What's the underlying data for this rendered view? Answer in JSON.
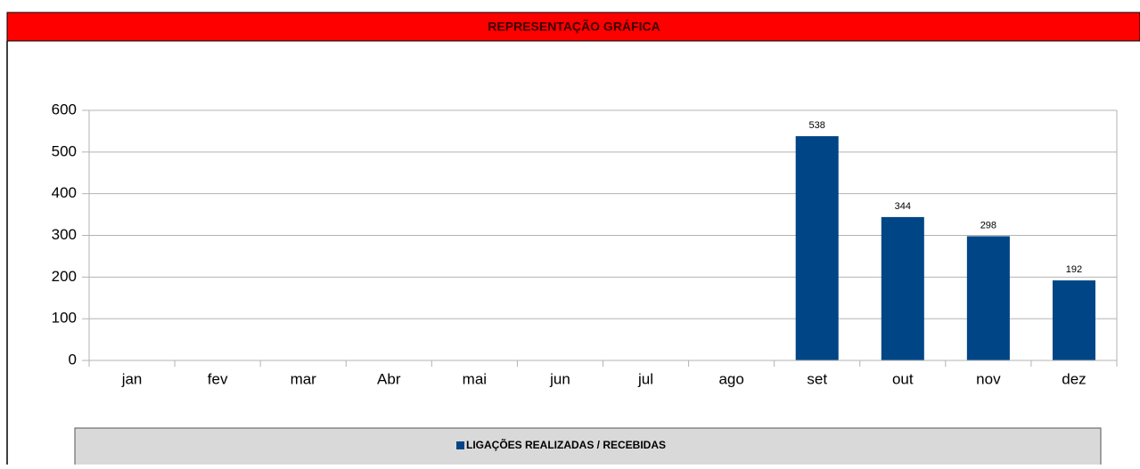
{
  "chart_data": {
    "type": "bar",
    "title": "REPRESENTAÇÃO GRÁFICA",
    "categories": [
      "jan",
      "fev",
      "mar",
      "Abr",
      "mai",
      "jun",
      "jul",
      "ago",
      "set",
      "out",
      "nov",
      "dez"
    ],
    "series": [
      {
        "name": "LIGAÇÕES REALIZADAS / RECEBIDAS",
        "color": "#004586",
        "values": [
          null,
          null,
          null,
          null,
          null,
          null,
          null,
          null,
          538,
          344,
          298,
          192
        ]
      }
    ],
    "ylim": [
      0,
      600
    ],
    "yticks": [
      0,
      100,
      200,
      300,
      400,
      500,
      600
    ],
    "grid": true,
    "legend": "bottom"
  }
}
